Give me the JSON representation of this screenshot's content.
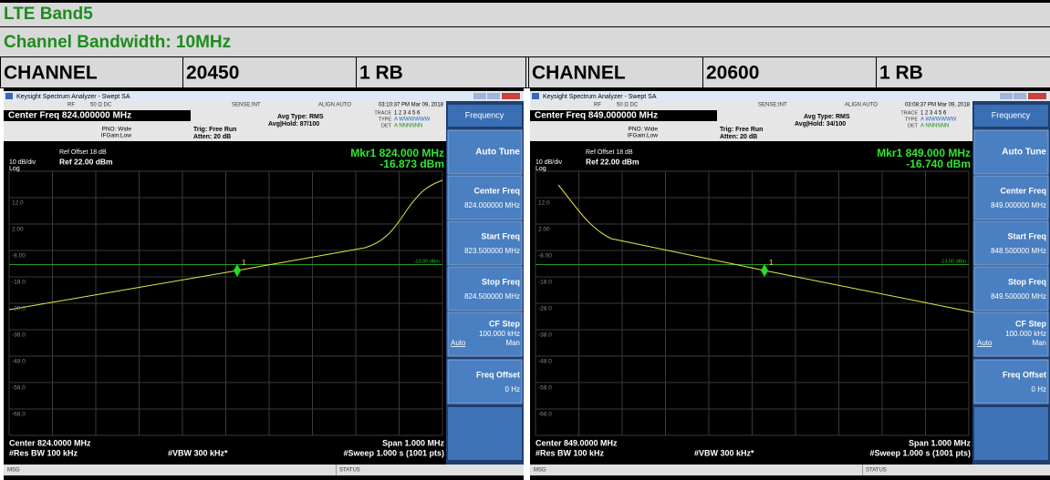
{
  "header": {
    "title": "LTE Band5",
    "subtitle": "Channel Bandwidth: 10MHz"
  },
  "panels": [
    {
      "channel_label": "CHANNEL",
      "channel": "20450",
      "rb": "1 RB",
      "analyzer": {
        "window_title": "Keysight Spectrum Analyzer - Swept SA",
        "rf": "RF",
        "input": "50 Ω  DC",
        "sense": "SENSE:INT",
        "align": "ALIGN AUTO",
        "timestamp": "03:10:37 PM Mar 09, 2018",
        "center_freq": "Center Freq 824.000000 MHz",
        "pno": "PNO: Wide",
        "ifgain": "IFGain:Low",
        "trig": "Trig: Free Run",
        "atten": "Atten: 20 dB",
        "avg_type": "Avg Type: RMS",
        "avg_hold": "Avg|Hold: 87/100",
        "trace_label": "TRACE",
        "trace_values": "1 2 3 4 5 6",
        "type_label": "TYPE",
        "type_values": "A WWWWWW",
        "det_label": "DET",
        "det_values": "A NNNNNN",
        "ref_offset": "Ref Offset 18 dB",
        "scale": "10 dB/div",
        "ref_level": "Ref 22.00 dBm",
        "scale_type": "Log",
        "marker_freq": "Mkr1 824.000 MHz",
        "marker_level": "-16.873 dBm",
        "marker_id": "1",
        "display_line": "-13.00 dBm",
        "y_labels": [
          "12.0",
          "2.00",
          "-8.00",
          "-18.0",
          "-28.0",
          "-38.0",
          "-48.0",
          "-58.0",
          "-68.0"
        ],
        "footer": {
          "center": "Center 824.0000 MHz",
          "res_bw": "#Res BW 100 kHz",
          "vbw": "#VBW 300 kHz*",
          "span": "Span 1.000 MHz",
          "sweep": "#Sweep  1.000 s (1001 pts)"
        },
        "msg": "MSG",
        "status": "STATUS",
        "menu": "Frequency",
        "softkeys": [
          {
            "label": "Auto Tune"
          },
          {
            "label": "Center Freq",
            "value": "824.000000 MHz"
          },
          {
            "label": "Start Freq",
            "value": "823.500000 MHz"
          },
          {
            "label": "Stop Freq",
            "value": "824.500000 MHz"
          },
          {
            "label": "CF Step",
            "value": "100.000 kHz",
            "options": [
              "Auto",
              "Man"
            ]
          },
          {
            "label": "Freq Offset",
            "value": "0 Hz"
          }
        ]
      }
    },
    {
      "channel_label": "CHANNEL",
      "channel": "20600",
      "rb": "1 RB",
      "analyzer": {
        "window_title": "Keysight Spectrum Analyzer - Swept SA",
        "rf": "RF",
        "input": "50 Ω  DC",
        "sense": "SENSE:INT",
        "align": "ALIGN AUTO",
        "timestamp": "03:08:37 PM Mar 09, 2018",
        "center_freq": "Center Freq 849.000000 MHz",
        "pno": "PNO: Wide",
        "ifgain": "IFGain:Low",
        "trig": "Trig: Free Run",
        "atten": "Atten: 20 dB",
        "avg_type": "Avg Type: RMS",
        "avg_hold": "Avg|Hold: 34/100",
        "trace_label": "TRACE",
        "trace_values": "1 2 3 4 5 6",
        "type_label": "TYPE",
        "type_values": "A WWWWWW",
        "det_label": "DET",
        "det_values": "A NNNNNN",
        "ref_offset": "Ref Offset 18 dB",
        "scale": "10 dB/div",
        "ref_level": "Ref 22.00 dBm",
        "scale_type": "Log",
        "marker_freq": "Mkr1 849.000 MHz",
        "marker_level": "-16.740 dBm",
        "marker_id": "1",
        "display_line": "-13.00 dBm",
        "y_labels": [
          "12.0",
          "2.00",
          "-8.00",
          "-18.0",
          "-28.0",
          "-38.0",
          "-48.0",
          "-58.0",
          "-68.0"
        ],
        "footer": {
          "center": "Center 849.0000 MHz",
          "res_bw": "#Res BW 100 kHz",
          "vbw": "#VBW 300 kHz*",
          "span": "Span 1.000 MHz",
          "sweep": "#Sweep  1.000 s (1001 pts)"
        },
        "msg": "MSG",
        "status": "STATUS",
        "menu": "Frequency",
        "softkeys": [
          {
            "label": "Auto Tune"
          },
          {
            "label": "Center Freq",
            "value": "849.000000 MHz"
          },
          {
            "label": "Start Freq",
            "value": "848.500000 MHz"
          },
          {
            "label": "Stop Freq",
            "value": "849.500000 MHz"
          },
          {
            "label": "CF Step",
            "value": "100.000 kHz",
            "options": [
              "Auto",
              "Man"
            ]
          },
          {
            "label": "Freq Offset",
            "value": "0 Hz"
          }
        ]
      }
    }
  ]
}
